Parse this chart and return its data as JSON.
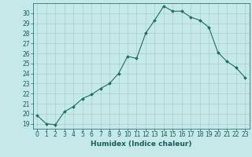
{
  "x": [
    0,
    1,
    2,
    3,
    4,
    5,
    6,
    7,
    8,
    9,
    10,
    11,
    12,
    13,
    14,
    15,
    16,
    17,
    18,
    19,
    20,
    21,
    22,
    23
  ],
  "y": [
    19.8,
    19.0,
    18.9,
    20.2,
    20.7,
    21.5,
    21.9,
    22.5,
    23.0,
    24.0,
    25.7,
    25.5,
    28.0,
    29.3,
    30.7,
    30.2,
    30.2,
    29.6,
    29.3,
    28.6,
    26.1,
    25.2,
    24.6,
    23.6
  ],
  "xlabel": "Humidex (Indice chaleur)",
  "xlim": [
    -0.5,
    23.5
  ],
  "ylim": [
    18.5,
    31.0
  ],
  "yticks": [
    19,
    20,
    21,
    22,
    23,
    24,
    25,
    26,
    27,
    28,
    29,
    30
  ],
  "xticks": [
    0,
    1,
    2,
    3,
    4,
    5,
    6,
    7,
    8,
    9,
    10,
    11,
    12,
    13,
    14,
    15,
    16,
    17,
    18,
    19,
    20,
    21,
    22,
    23
  ],
  "bg_color": "#c5e8e8",
  "grid_color": "#aacfcf",
  "line_color": "#1e6e60",
  "marker_color": "#1e6e60",
  "tick_color": "#1a5c5c",
  "label_color": "#1a5c5c",
  "tick_fontsize": 5.5,
  "label_fontsize": 6.5
}
